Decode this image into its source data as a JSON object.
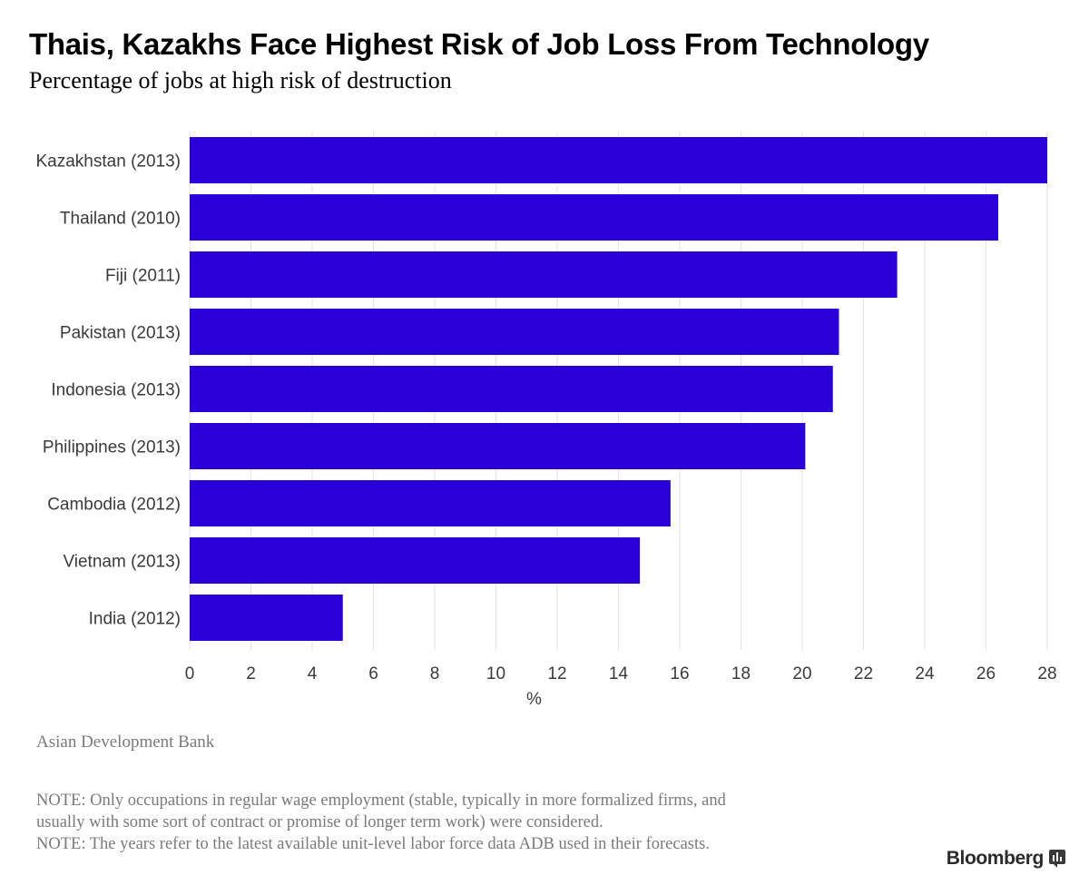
{
  "header": {
    "title": "Thais, Kazakhs Face Highest Risk of Job Loss From Technology",
    "subtitle": "Percentage of jobs at high risk of destruction"
  },
  "chart_data": {
    "type": "bar",
    "orientation": "horizontal",
    "categories": [
      "Kazakhstan (2013)",
      "Thailand (2010)",
      "Fiji (2011)",
      "Pakistan (2013)",
      "Indonesia (2013)",
      "Philippines (2013)",
      "Cambodia (2012)",
      "Vietnam (2013)",
      "India (2012)"
    ],
    "values": [
      28.0,
      26.4,
      23.1,
      21.2,
      21.0,
      20.1,
      15.7,
      14.7,
      5.0
    ],
    "xlabel": "%",
    "xlim": [
      0,
      28
    ],
    "xticks": [
      0,
      2,
      4,
      6,
      8,
      10,
      12,
      14,
      16,
      18,
      20,
      22,
      24,
      26,
      28
    ],
    "grid": "vertical",
    "bar_color": "#2b00d8"
  },
  "footer": {
    "source": "Asian Development Bank",
    "note_lines": [
      "NOTE: Only occupations in regular wage employment (stable, typically in more formalized firms, and",
      "usually with some sort of contract or promise of longer term work) were considered.",
      "NOTE: The years refer to the latest available unit-level labor force data ADB used in their forecasts."
    ],
    "brand": "Bloomberg"
  }
}
